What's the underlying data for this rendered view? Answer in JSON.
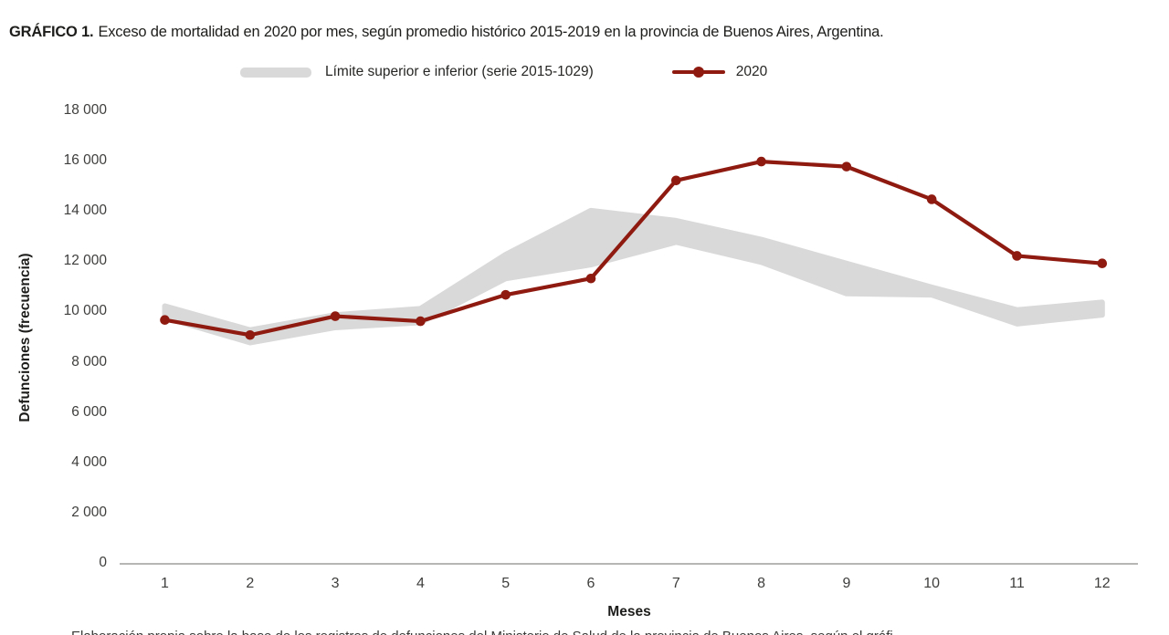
{
  "title": {
    "prefix": "GRÁFICO 1.",
    "text": "Exceso de mortalidad en 2020 por mes, según promedio histórico 2015-2019 en la provincia de Buenos Aires, Argentina."
  },
  "legend": {
    "band_label": "Límite superior e inferior (serie 2015-1029)",
    "line_label": "2020"
  },
  "axes": {
    "y_title": "Defunciones (frecuencia)",
    "x_title": "Meses"
  },
  "footer_partial": "Elaboración propia sobre la base de los registros de defunciones del Ministerio de Salud de la provincia de Buenos Aires, según el gráfi",
  "colors": {
    "line": "#8e1a10",
    "band": "#d9d9d9",
    "axis": "#9d9d9c",
    "text": "#1d1d1b"
  },
  "chart_data": {
    "type": "line",
    "title": "GRÁFICO 1. Exceso de mortalidad en 2020 por mes, según promedio histórico 2015-2019 en la provincia de Buenos Aires, Argentina.",
    "categories": [
      "1",
      "2",
      "3",
      "4",
      "5",
      "6",
      "7",
      "8",
      "9",
      "10",
      "11",
      "12"
    ],
    "series": [
      {
        "name": "2020",
        "values": [
          9700,
          9100,
          9850,
          9650,
          10700,
          11350,
          15250,
          16000,
          15800,
          14500,
          12250,
          11950
        ]
      }
    ],
    "band": {
      "name": "Límite superior e inferior (serie 2015-1029)",
      "upper": [
        10250,
        9300,
        9900,
        10150,
        12300,
        14050,
        13650,
        12900,
        11950,
        11000,
        10100,
        10400
      ],
      "lower": [
        9800,
        8800,
        9400,
        9600,
        11350,
        11900,
        12800,
        12000,
        10750,
        10700,
        9550,
        9900
      ]
    },
    "xlabel": "Meses",
    "ylabel": "Defunciones (frecuencia)",
    "ylim": [
      0,
      18000
    ],
    "yticks": {
      "values": [
        0,
        2000,
        4000,
        6000,
        8000,
        10000,
        12000,
        14000,
        16000,
        18000
      ],
      "labels": [
        "0",
        "2 000",
        "4 000",
        "6 000",
        "8 000",
        "10 000",
        "12 000",
        "14 000",
        "16 000",
        "18 000"
      ]
    },
    "grid": false,
    "legend_position": "top"
  }
}
